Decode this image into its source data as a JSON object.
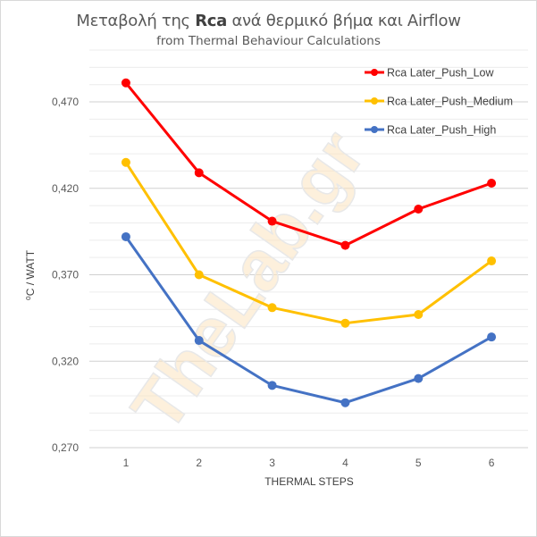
{
  "chart_data": {
    "type": "line",
    "title_prefix": "Μεταβολή της ",
    "title_bold": "Rca",
    "title_suffix": " ανά θερμικό βήμα και  Airflow",
    "subtitle": "from Thermal Behaviour Calculations",
    "xlabel": "THERMAL STEPS",
    "ylabel": "⁰C / WATT",
    "categories": [
      "1",
      "2",
      "3",
      "4",
      "5",
      "6"
    ],
    "ylim": [
      0.27,
      0.5
    ],
    "yticks": [
      0.27,
      0.32,
      0.37,
      0.42,
      0.47
    ],
    "ytick_labels": [
      "0,270",
      "0,320",
      "0,370",
      "0,420",
      "0,470"
    ],
    "minor_grid_step": 0.01,
    "grid": true,
    "legend_position": "top-right",
    "series": [
      {
        "name": "Rca Later_Push_Low",
        "color": "#FF0000",
        "values": [
          0.481,
          0.429,
          0.401,
          0.387,
          0.408,
          0.423
        ]
      },
      {
        "name": "Rca Later_Push_Medium",
        "color": "#FFC000",
        "values": [
          0.435,
          0.37,
          0.351,
          0.342,
          0.347,
          0.378
        ]
      },
      {
        "name": "Rca Later_Push_High",
        "color": "#4472C4",
        "values": [
          0.392,
          0.332,
          0.306,
          0.296,
          0.31,
          0.334
        ]
      }
    ],
    "watermark": "TheLab.gr"
  }
}
